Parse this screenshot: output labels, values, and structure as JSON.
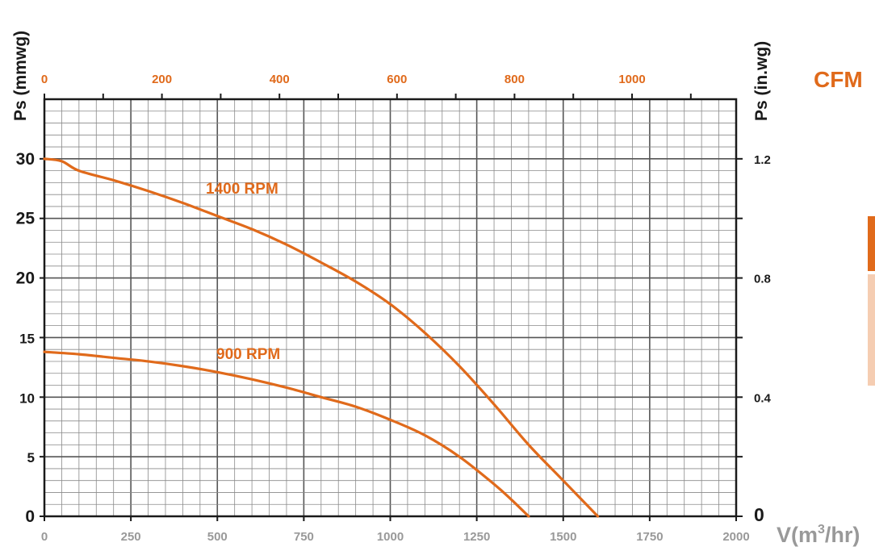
{
  "chart_data": {
    "type": "line",
    "title": "",
    "xlabel": "V(m",
    "xlabel_sup": "3",
    "xlabel_tail": "/hr)",
    "ylabel_left": "Ps (mmwg)",
    "ylabel_right": "Ps (in.wg)",
    "top_axis_label": "CFM",
    "xlim": [
      0,
      2000
    ],
    "ylim": [
      0,
      35
    ],
    "x_ticks": [
      "0",
      "250",
      "500",
      "750",
      "1000",
      "1250",
      "1500",
      "1750",
      "2000"
    ],
    "y_ticks_left": [
      "0",
      "5",
      "10",
      "15",
      "20",
      "25",
      "30"
    ],
    "y_ticks_right": [
      "0",
      "0.4",
      "0.8",
      "1.2"
    ],
    "cfm_ticks": [
      "0",
      "200",
      "400",
      "600",
      "800",
      "1000"
    ],
    "grid": true,
    "series": [
      {
        "name": "1400 RPM",
        "x": [
          0,
          50,
          100,
          200,
          300,
          400,
          500,
          600,
          700,
          800,
          900,
          1000,
          1100,
          1200,
          1300,
          1400,
          1500,
          1600
        ],
        "y": [
          30,
          29.8,
          29,
          28.2,
          27.3,
          26.3,
          25.2,
          24.1,
          22.8,
          21.3,
          19.7,
          17.8,
          15.4,
          12.6,
          9.4,
          6.0,
          3.0,
          0
        ]
      },
      {
        "name": "900 RPM",
        "x": [
          0,
          100,
          200,
          300,
          400,
          500,
          600,
          700,
          800,
          900,
          1000,
          1100,
          1200,
          1300,
          1350,
          1400
        ],
        "y": [
          13.8,
          13.6,
          13.3,
          13.0,
          12.6,
          12.1,
          11.5,
          10.8,
          10.0,
          9.2,
          8.1,
          6.8,
          5.0,
          2.7,
          1.4,
          0
        ]
      }
    ],
    "colors": {
      "accent": "#e06a1b",
      "grid": "#5a5a5a",
      "text": "#1a1a1a",
      "light_gray": "#888888",
      "bar_light": "#f5cdb2"
    }
  }
}
